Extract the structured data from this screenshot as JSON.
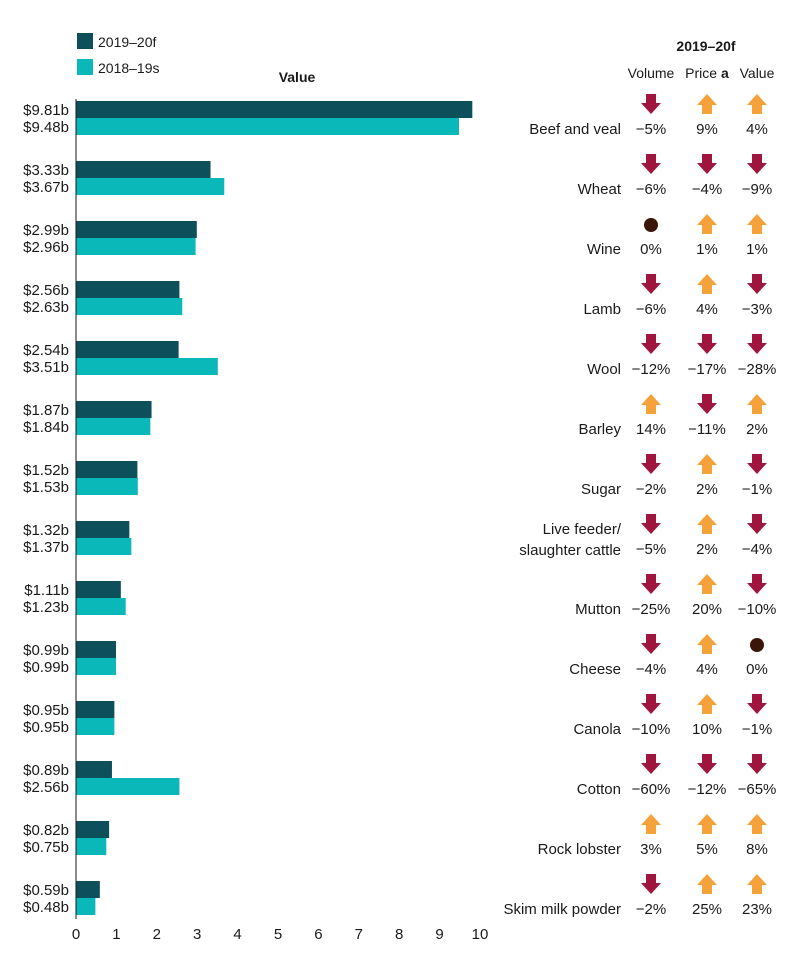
{
  "chart_data": {
    "type": "bar",
    "title": "Value",
    "orientation": "horizontal",
    "xlim": [
      0,
      10
    ],
    "xticks": [
      "0",
      "1",
      "2",
      "3",
      "4",
      "5",
      "6",
      "7",
      "8",
      "9",
      "10"
    ],
    "legend_position": "top-left",
    "colors": {
      "2019-20f": "#0e4f5c",
      "2018-19s": "#0ab7b9",
      "up": "#f5a23a",
      "down": "#a0153e",
      "flat": "#3a1508"
    },
    "series": [
      {
        "name": "2019–20f",
        "values": [
          9.81,
          3.33,
          2.99,
          2.56,
          2.54,
          1.87,
          1.52,
          1.32,
          1.11,
          0.99,
          0.95,
          0.89,
          0.82,
          0.59
        ]
      },
      {
        "name": "2018–19s",
        "values": [
          9.48,
          3.67,
          2.96,
          2.63,
          3.51,
          1.84,
          1.53,
          1.37,
          1.23,
          0.99,
          0.95,
          2.56,
          0.75,
          0.48
        ]
      }
    ],
    "value_labels": {
      "2019-20f": [
        "$9.81b",
        "$3.33b",
        "$2.99b",
        "$2.56b",
        "$2.54b",
        "$1.87b",
        "$1.52b",
        "$1.32b",
        "$1.11b",
        "$0.99b",
        "$0.95b",
        "$0.89b",
        "$0.82b",
        "$0.59b"
      ],
      "2018-19s": [
        "$9.48b",
        "$3.67b",
        "$2.96b",
        "$2.63b",
        "$3.51b",
        "$1.84b",
        "$1.53b",
        "$1.37b",
        "$1.23b",
        "$0.99b",
        "$0.95b",
        "$2.56b",
        "$0.75b",
        "$0.48b"
      ]
    },
    "table": {
      "heading": "2019–20f",
      "columns": [
        {
          "label": "Volume"
        },
        {
          "label": "Price",
          "note": "a"
        },
        {
          "label": "Value"
        }
      ],
      "rows": [
        {
          "name": [
            "Beef and veal"
          ],
          "volume": "−5%",
          "price": "9%",
          "value": "4%",
          "dirs": [
            "down",
            "up",
            "up"
          ]
        },
        {
          "name": [
            "Wheat"
          ],
          "volume": "−6%",
          "price": "−4%",
          "value": "−9%",
          "dirs": [
            "down",
            "down",
            "down"
          ]
        },
        {
          "name": [
            "Wine"
          ],
          "volume": "0%",
          "price": "1%",
          "value": "1%",
          "dirs": [
            "flat",
            "up",
            "up"
          ]
        },
        {
          "name": [
            "Lamb"
          ],
          "volume": "−6%",
          "price": "4%",
          "value": "−3%",
          "dirs": [
            "down",
            "up",
            "down"
          ]
        },
        {
          "name": [
            "Wool"
          ],
          "volume": "−12%",
          "price": "−17%",
          "value": "−28%",
          "dirs": [
            "down",
            "down",
            "down"
          ]
        },
        {
          "name": [
            "Barley"
          ],
          "volume": "14%",
          "price": "−11%",
          "value": "2%",
          "dirs": [
            "up",
            "down",
            "up"
          ]
        },
        {
          "name": [
            "Sugar"
          ],
          "volume": "−2%",
          "price": "2%",
          "value": "−1%",
          "dirs": [
            "down",
            "up",
            "down"
          ]
        },
        {
          "name": [
            "Live feeder/",
            "slaughter cattle"
          ],
          "volume": "−5%",
          "price": "2%",
          "value": "−4%",
          "dirs": [
            "down",
            "up",
            "down"
          ]
        },
        {
          "name": [
            "Mutton"
          ],
          "volume": "−25%",
          "price": "20%",
          "value": "−10%",
          "dirs": [
            "down",
            "up",
            "down"
          ]
        },
        {
          "name": [
            "Cheese"
          ],
          "volume": "−4%",
          "price": "4%",
          "value": "0%",
          "dirs": [
            "down",
            "up",
            "flat"
          ]
        },
        {
          "name": [
            "Canola"
          ],
          "volume": "−10%",
          "price": "10%",
          "value": "−1%",
          "dirs": [
            "down",
            "up",
            "down"
          ]
        },
        {
          "name": [
            "Cotton"
          ],
          "volume": "−60%",
          "price": "−12%",
          "value": "−65%",
          "dirs": [
            "down",
            "down",
            "down"
          ]
        },
        {
          "name": [
            "Rock lobster"
          ],
          "volume": "3%",
          "price": "5%",
          "value": "8%",
          "dirs": [
            "up",
            "up",
            "up"
          ]
        },
        {
          "name": [
            "Skim milk powder"
          ],
          "volume": "−2%",
          "price": "25%",
          "value": "23%",
          "dirs": [
            "down",
            "up",
            "up"
          ]
        }
      ]
    }
  }
}
